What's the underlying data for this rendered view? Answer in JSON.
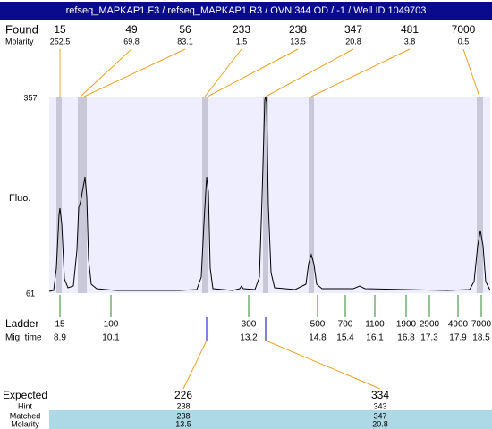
{
  "header": {
    "title": "refseq_MAPKAP1.F3 / refseq_MAPKAP1.R3 / OVN 344 OD / -1 / Well ID 1049703"
  },
  "found": {
    "label": "Found",
    "sizes": [
      "15",
      "49",
      "56",
      "233",
      "238",
      "347",
      "481",
      "7000"
    ],
    "molarity_label": "Molarity",
    "molarity": [
      "252.5",
      "69.8",
      "83.1",
      "1.5",
      "13.5",
      "20.8",
      "3.8",
      "0.5"
    ]
  },
  "plot": {
    "y_label": "Fluo.",
    "y_top": "357",
    "y_bottom": "61"
  },
  "ladder": {
    "label": "Ladder",
    "sizes": [
      "15",
      "100",
      "300",
      "500",
      "700",
      "1100",
      "1900",
      "2900",
      "4900",
      "7000"
    ],
    "mig_time_label": "Mig. time",
    "mig_times": [
      "8.9",
      "10.1",
      "13.2",
      "14.8",
      "15.4",
      "16.1",
      "16.8",
      "17.3",
      "17.9",
      "18.5"
    ]
  },
  "expected_table": {
    "rows": [
      {
        "label": "Expected",
        "values": [
          "226",
          "334"
        ]
      },
      {
        "label": "Hint",
        "values": [
          "238",
          "343"
        ]
      },
      {
        "label": "Matched",
        "values": [
          "238",
          "347"
        ]
      },
      {
        "label": "Molarity",
        "values": [
          "13.5",
          "20.8"
        ]
      }
    ]
  }
}
